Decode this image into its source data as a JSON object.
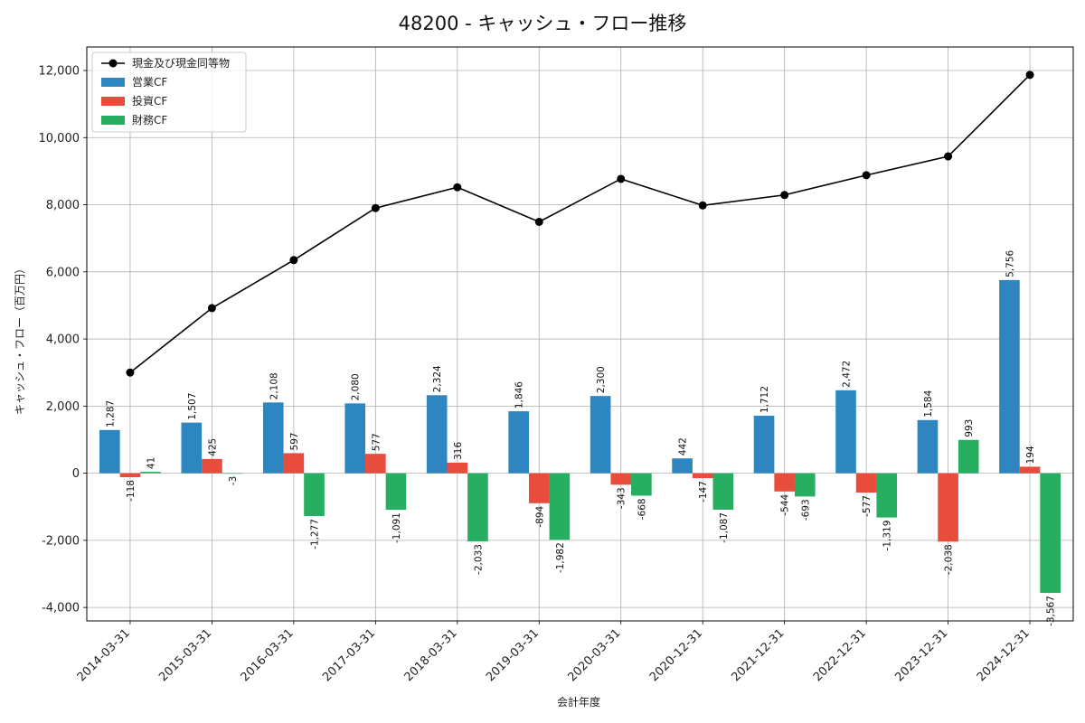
{
  "chart_data": {
    "type": "bar",
    "title": "48200 - キャッシュ・フロー推移",
    "xlabel": "会計年度",
    "ylabel": "キャッシュ・フロー（百万円）",
    "ylim": [
      -4400,
      12700
    ],
    "yticks": [
      -4000,
      -2000,
      0,
      2000,
      4000,
      6000,
      8000,
      10000,
      12000
    ],
    "ytick_labels": [
      "-4,000",
      "-2,000",
      "0",
      "2,000",
      "4,000",
      "6,000",
      "8,000",
      "10,000",
      "12,000"
    ],
    "grid": true,
    "legend_position": "top-left",
    "categories": [
      "2014-03-31",
      "2015-03-31",
      "2016-03-31",
      "2017-03-31",
      "2018-03-31",
      "2019-03-31",
      "2020-03-31",
      "2020-12-31",
      "2021-12-31",
      "2022-12-31",
      "2023-12-31",
      "2024-12-31"
    ],
    "bar_series": [
      {
        "name": "営業CF",
        "color": "#2e86c1",
        "values": [
          1287,
          1507,
          2108,
          2080,
          2324,
          1846,
          2300,
          442,
          1712,
          2472,
          1584,
          5756
        ],
        "labels": [
          "1,287",
          "1,507",
          "2,108",
          "2,080",
          "2,324",
          "1,846",
          "2,300",
          "442",
          "1,712",
          "2,472",
          "1,584",
          "5,756"
        ]
      },
      {
        "name": "投資CF",
        "color": "#e74c3c",
        "values": [
          -118,
          425,
          597,
          577,
          316,
          -894,
          -343,
          -147,
          -544,
          -577,
          -2038,
          194
        ],
        "labels": [
          "-118",
          "425",
          "597",
          "577",
          "316",
          "-894",
          "-343",
          "-147",
          "-544",
          "-577",
          "-2,038",
          "194"
        ]
      },
      {
        "name": "財務CF",
        "color": "#27ae60",
        "values": [
          41,
          -3,
          -1277,
          -1091,
          -2033,
          -1982,
          -668,
          -1087,
          -693,
          -1319,
          993,
          -3567
        ],
        "labels": [
          "41",
          "-3",
          "-1,277",
          "-1,091",
          "-2,033",
          "-1,982",
          "-668",
          "-1,087",
          "-693",
          "-1,319",
          "993",
          "-3,567"
        ]
      }
    ],
    "line_series": {
      "name": "現金及び現金同等物",
      "color": "#000000",
      "values": [
        3000,
        4920,
        6350,
        7900,
        8520,
        7490,
        8770,
        7980,
        8290,
        8880,
        9440,
        11870
      ]
    }
  }
}
